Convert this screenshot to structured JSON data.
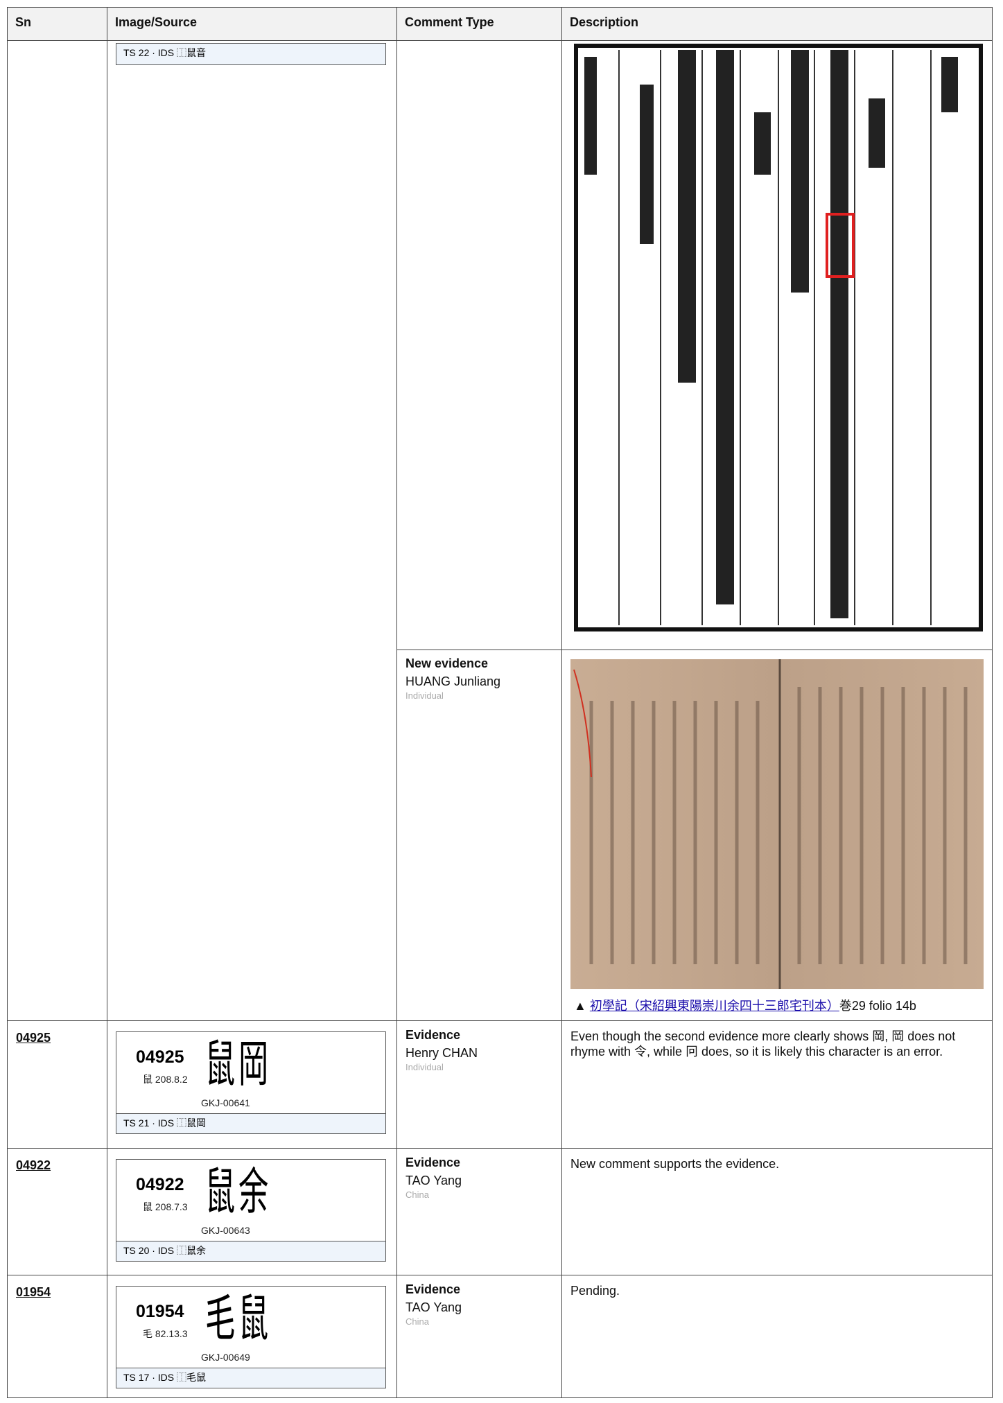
{
  "table": {
    "columns": [
      "Sn",
      "Image/Source",
      "Comment Type",
      "Description"
    ],
    "rows": [
      {
        "ts_ids": "TS 22 · IDS ⿰鼠音",
        "comments": [
          {
            "type": "New evidence",
            "author": "HUANG Junliang",
            "role": "Individual",
            "caption_marker": "▲",
            "caption_link": "初學記（宋紹興東陽崇川余四十三郎宅刊本）",
            "caption_rest": "巻29 folio 14b"
          }
        ]
      },
      {
        "sn": "04925",
        "code": "04925",
        "radical": "鼠 208.8.2",
        "glyph_components": [
          "鼠",
          "岡"
        ],
        "gkj": "GKJ-00641",
        "ts_ids": "TS 21 · IDS ⿰鼠岡",
        "comments": [
          {
            "type": "Evidence",
            "author": "Henry CHAN",
            "role": "Individual",
            "description": "Even though the second evidence more clearly shows 岡, 岡 does not rhyme with 令, while 冋 does, so it is likely this character is an error."
          }
        ]
      },
      {
        "sn": "04922",
        "code": "04922",
        "radical": "鼠 208.7.3",
        "glyph_components": [
          "鼠",
          "余"
        ],
        "gkj": "GKJ-00643",
        "ts_ids": "TS 20 · IDS ⿰鼠余",
        "comments": [
          {
            "type": "Evidence",
            "author": "TAO Yang",
            "role": "China",
            "description": "New comment supports the evidence."
          }
        ]
      },
      {
        "sn": "01954",
        "code": "01954",
        "radical": "毛 82.13.3",
        "glyph_components": [
          "毛",
          "鼠"
        ],
        "gkj": "GKJ-00649",
        "ts_ids": "TS 17 · IDS ⿰毛鼠",
        "comments": [
          {
            "type": "Evidence",
            "author": "TAO Yang",
            "role": "China",
            "description": "Pending."
          }
        ]
      }
    ]
  }
}
